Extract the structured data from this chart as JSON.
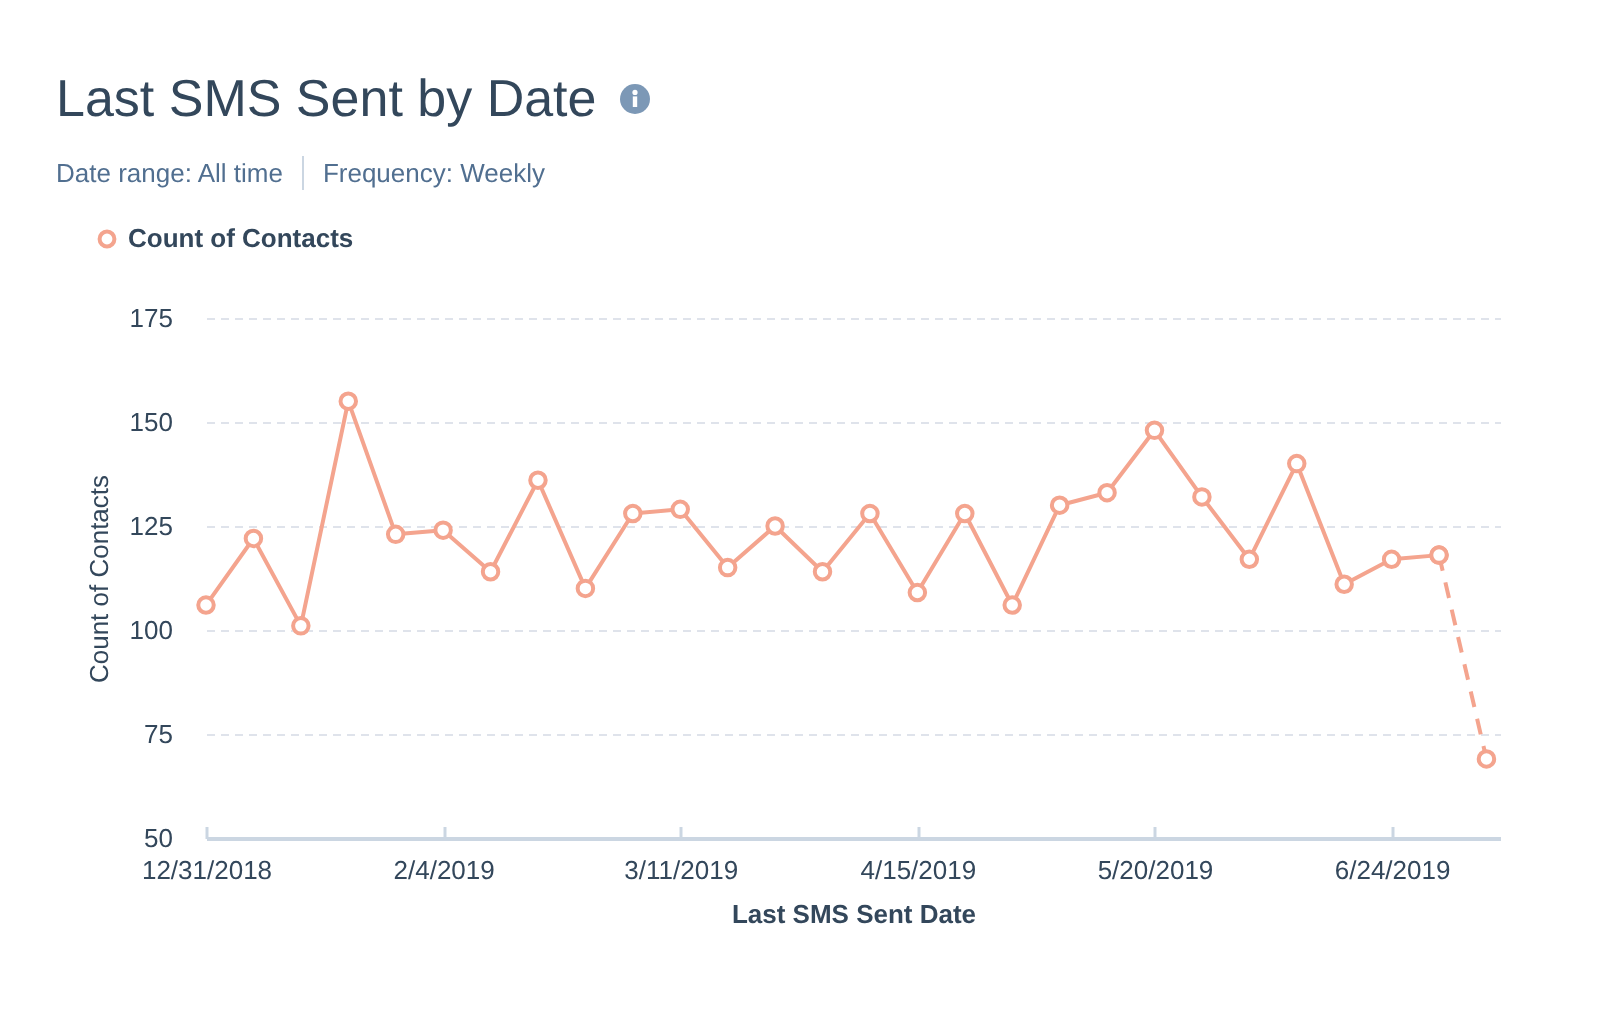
{
  "chart_data": {
    "type": "line",
    "title": "Last SMS Sent by Date",
    "subtitle": "Date range: All time",
    "annotations": [
      "Frequency: Weekly"
    ],
    "xlabel": "Last SMS Sent Date",
    "ylabel": "Count of Contacts",
    "x": [
      "2018-12-31",
      "2019-01-07",
      "2019-01-14",
      "2019-01-21",
      "2019-01-28",
      "2019-02-04",
      "2019-02-11",
      "2019-02-18",
      "2019-02-25",
      "2019-03-04",
      "2019-03-11",
      "2019-03-18",
      "2019-03-25",
      "2019-04-01",
      "2019-04-08",
      "2019-04-15",
      "2019-04-22",
      "2019-04-29",
      "2019-05-06",
      "2019-05-13",
      "2019-05-20",
      "2019-05-27",
      "2019-06-03",
      "2019-06-10",
      "2019-06-17",
      "2019-06-24",
      "2019-07-01"
    ],
    "series": [
      {
        "name": "Count of Contacts",
        "color": "#f4a48e",
        "line_style": "solid",
        "values": [
          106,
          122,
          101,
          155,
          123,
          124,
          114,
          136,
          110,
          128,
          129,
          115,
          125,
          114,
          128,
          109,
          128,
          106,
          130,
          133,
          148,
          132,
          117,
          140,
          111,
          117,
          118
        ]
      },
      {
        "color": "#f4a48e",
        "line_style": "dashed",
        "x": [
          "2019-07-01",
          "2019-07-08"
        ],
        "values": [
          118,
          69
        ]
      }
    ],
    "xlim": [
      "2018-12-31",
      "2019-07-10"
    ],
    "xticks": [
      {
        "value": "2018-12-31",
        "label": "12/31/2018"
      },
      {
        "value": "2019-02-04",
        "label": "2/4/2019"
      },
      {
        "value": "2019-03-11",
        "label": "3/11/2019"
      },
      {
        "value": "2019-04-15",
        "label": "4/15/2019"
      },
      {
        "value": "2019-05-20",
        "label": "5/20/2019"
      },
      {
        "value": "2019-06-24",
        "label": "6/24/2019"
      }
    ],
    "ylim": [
      50,
      175
    ],
    "yticks": [
      50,
      75,
      100,
      125,
      150,
      175
    ],
    "grid": "y",
    "legend": "top left",
    "marker": "circle"
  }
}
